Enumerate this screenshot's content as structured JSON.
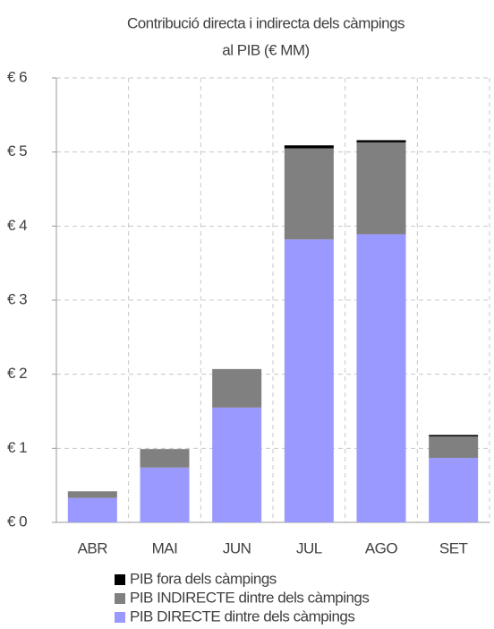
{
  "chart_data": {
    "type": "stacked-bar",
    "title": [
      "Contribució directa i indirecta dels càmpings",
      "al PIB (€ MM)"
    ],
    "categories": [
      "ABR",
      "MAI",
      "JUN",
      "JUL",
      "AGO",
      "SET"
    ],
    "series": [
      {
        "name": "PIB DIRECTE dintre dels càmpings",
        "color": "#9999ff",
        "values": [
          0.33,
          0.74,
          1.55,
          3.82,
          3.89,
          0.87
        ]
      },
      {
        "name": "PIB INDIRECTE dintre dels càmpings",
        "color": "#808080",
        "values": [
          0.09,
          0.25,
          0.52,
          1.23,
          1.24,
          0.29
        ]
      },
      {
        "name": "PIB fora dels càmpings",
        "color": "#000000",
        "values": [
          0.0,
          0.0,
          0.0,
          0.04,
          0.03,
          0.02
        ]
      }
    ],
    "ylim": [
      0,
      6
    ],
    "yticks": [
      {
        "value": 0,
        "label": "€ 0"
      },
      {
        "value": 1,
        "label": "€ 1"
      },
      {
        "value": 2,
        "label": "€ 2"
      },
      {
        "value": 3,
        "label": "€ 3"
      },
      {
        "value": 4,
        "label": "€ 4"
      },
      {
        "value": 5,
        "label": "€ 5"
      },
      {
        "value": 6,
        "label": "€ 6"
      }
    ],
    "grid": true
  }
}
